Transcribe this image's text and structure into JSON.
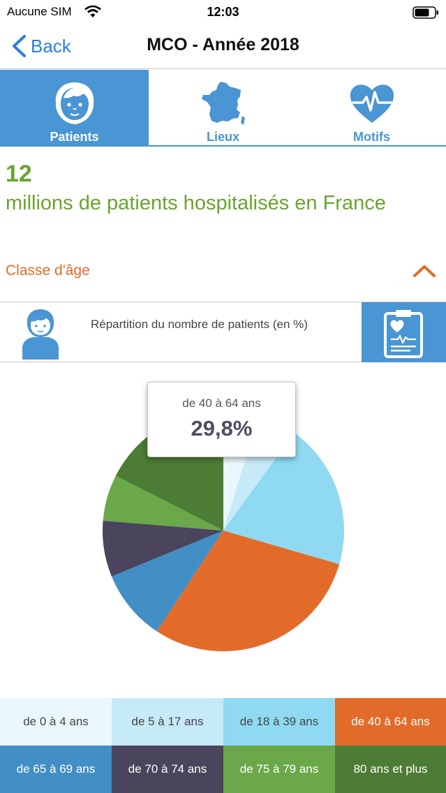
{
  "status_bar": {
    "carrier": "Aucune SIM",
    "time": "12:03"
  },
  "nav": {
    "back_label": "Back",
    "title": "MCO - Année 2018"
  },
  "tabs": [
    {
      "label": "Patients",
      "icon": "patient-face-icon",
      "active": true
    },
    {
      "label": "Lieux",
      "icon": "france-map-icon",
      "active": false
    },
    {
      "label": "Motifs",
      "icon": "heart-pulse-icon",
      "active": false
    }
  ],
  "headline": {
    "number": "12",
    "text": "millions de patients hospitalisés en France"
  },
  "section": {
    "label": "Classe d'âge",
    "expanded": true
  },
  "info": {
    "description": "Répartition du nombre de patients (en %)"
  },
  "tooltip": {
    "category": "de 40 à 64 ans",
    "value": "29,8%"
  },
  "colors": {
    "accent_blue": "#4a95d3",
    "headline_green": "#6aa42e",
    "section_orange": "#e36a2a"
  },
  "chart_data": {
    "type": "pie",
    "title": "",
    "unit": "%",
    "categories": [
      "de 0 à 4 ans",
      "de 5 à 17 ans",
      "de 18 à 39 ans",
      "de 40 à 64 ans",
      "de 65 à 69 ans",
      "de 70 à 74 ans",
      "de 75 à 79 ans",
      "80 ans et plus"
    ],
    "values": [
      4.8,
      5.2,
      19.5,
      29.8,
      9.5,
      7.5,
      6.2,
      17.5
    ],
    "colors": [
      "#eaf7fc",
      "#c6eaf8",
      "#8fdaf2",
      "#e36b2a",
      "#428fc6",
      "#4a445c",
      "#6aa84a",
      "#4d7c35"
    ],
    "text_colors": [
      "#444444",
      "#444444",
      "#444444",
      "#ffffff",
      "#ffffff",
      "#ffffff",
      "#ffffff",
      "#ffffff"
    ],
    "selected": "de 40 à 64 ans",
    "legend_position": "bottom"
  }
}
